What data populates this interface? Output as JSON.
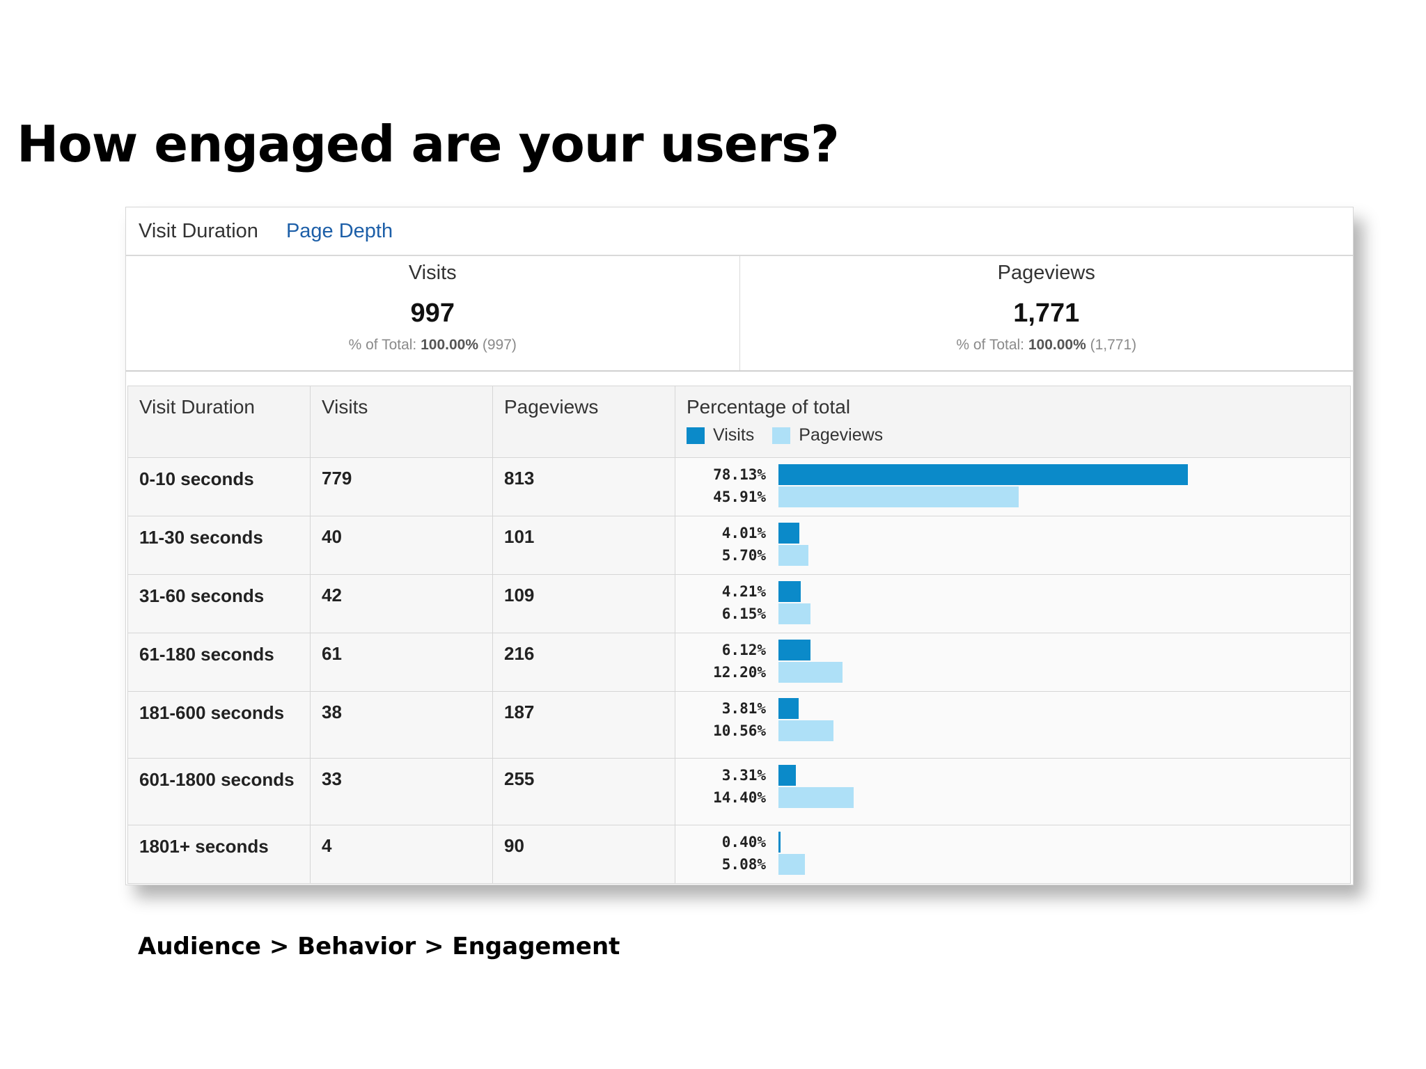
{
  "slide": {
    "title": "How engaged are your users?",
    "footer": "Audience > Behavior > Engagement"
  },
  "tabs": [
    "Visit Duration",
    "Page Depth"
  ],
  "summary": {
    "visits": {
      "label": "Visits",
      "value": "997",
      "total_prefix": "% of Total:",
      "total_pct": "100.00%",
      "total_abs": "(997)"
    },
    "pageviews": {
      "label": "Pageviews",
      "value": "1,771",
      "total_prefix": "% of Total:",
      "total_pct": "100.00%",
      "total_abs": "(1,771)"
    }
  },
  "table": {
    "headers": {
      "duration": "Visit Duration",
      "visits": "Visits",
      "pageviews": "Pageviews",
      "pct": "Percentage of total"
    },
    "legend": {
      "visits": "Visits",
      "pageviews": "Pageviews"
    },
    "colors": {
      "visits": "#0b8ac9",
      "pageviews": "#aee0f7"
    },
    "rows": [
      {
        "duration": "0-10 seconds",
        "visits": "779",
        "pageviews": "813",
        "visits_pct": "78.13%",
        "pageviews_pct": "45.91%",
        "visits_frac": 0.7813,
        "pageviews_frac": 0.4591
      },
      {
        "duration": "11-30 seconds",
        "visits": "40",
        "pageviews": "101",
        "visits_pct": "4.01%",
        "pageviews_pct": "5.70%",
        "visits_frac": 0.0401,
        "pageviews_frac": 0.057
      },
      {
        "duration": "31-60 seconds",
        "visits": "42",
        "pageviews": "109",
        "visits_pct": "4.21%",
        "pageviews_pct": "6.15%",
        "visits_frac": 0.0421,
        "pageviews_frac": 0.0615
      },
      {
        "duration": "61-180 seconds",
        "visits": "61",
        "pageviews": "216",
        "visits_pct": "6.12%",
        "pageviews_pct": "12.20%",
        "visits_frac": 0.0612,
        "pageviews_frac": 0.122
      },
      {
        "duration": "181-600 seconds",
        "visits": "38",
        "pageviews": "187",
        "visits_pct": "3.81%",
        "pageviews_pct": "10.56%",
        "visits_frac": 0.0381,
        "pageviews_frac": 0.1056
      },
      {
        "duration": "601-1800 seconds",
        "visits": "33",
        "pageviews": "255",
        "visits_pct": "3.31%",
        "pageviews_pct": "14.40%",
        "visits_frac": 0.0331,
        "pageviews_frac": 0.144
      },
      {
        "duration": "1801+ seconds",
        "visits": "4",
        "pageviews": "90",
        "visits_pct": "0.40%",
        "pageviews_pct": "5.08%",
        "visits_frac": 0.004,
        "pageviews_frac": 0.0508
      }
    ]
  }
}
